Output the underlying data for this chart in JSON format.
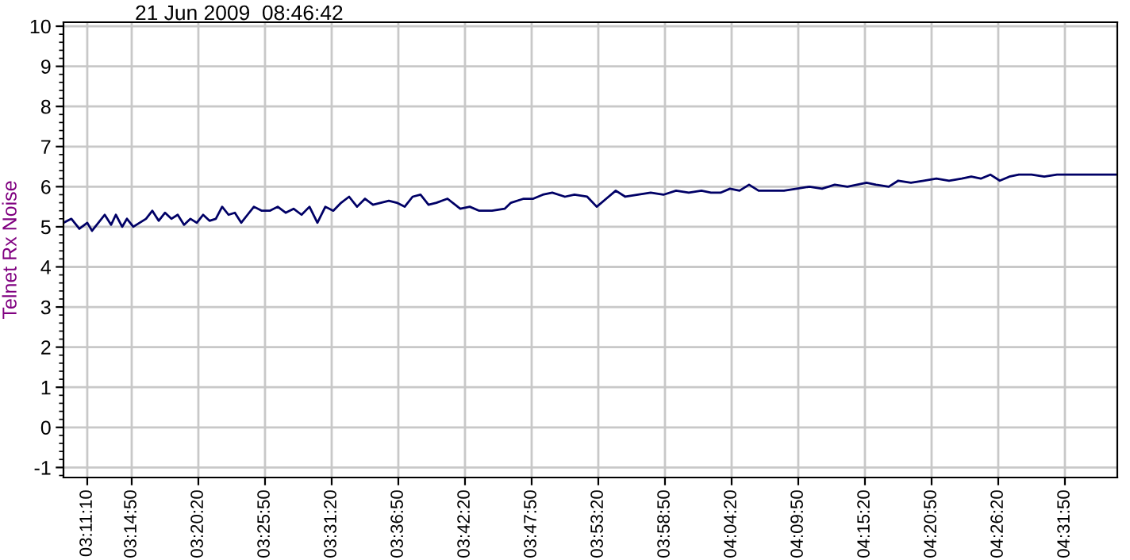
{
  "chart_data": {
    "type": "line",
    "title": "21 Jun 2009  08:46:42",
    "ylabel": "Telnet Rx Noise",
    "x": [
      3.1534,
      3.1643,
      3.1752,
      3.1861,
      3.1927,
      3.2014,
      3.2101,
      3.2189,
      3.2254,
      3.2341,
      3.2407,
      3.2494,
      3.2581,
      3.2669,
      3.2756,
      3.2843,
      3.2931,
      3.3018,
      3.3105,
      3.3192,
      3.328,
      3.3367,
      3.3454,
      3.3542,
      3.3629,
      3.3716,
      3.3804,
      3.3891,
      3.3978,
      3.4065,
      3.4153,
      3.4262,
      3.4371,
      3.448,
      3.4589,
      3.4698,
      3.4808,
      3.4917,
      3.5026,
      3.5135,
      3.5244,
      3.5353,
      3.5462,
      3.5571,
      3.5681,
      3.579,
      3.5899,
      3.6008,
      3.6117,
      3.6226,
      3.6335,
      3.6444,
      3.6554,
      3.6663,
      3.6815,
      3.699,
      3.7121,
      3.7252,
      3.7427,
      3.7601,
      3.7688,
      3.7863,
      3.7994,
      3.8125,
      3.8256,
      3.843,
      3.8561,
      3.8736,
      3.8867,
      3.8998,
      3.9129,
      3.926,
      3.9434,
      3.9609,
      3.9784,
      3.9958,
      4.0133,
      4.0307,
      4.0438,
      4.0569,
      4.07,
      4.0831,
      4.0962,
      4.1093,
      4.1268,
      4.1442,
      4.1617,
      4.1792,
      4.1966,
      4.2141,
      4.2315,
      4.2446,
      4.2577,
      4.2708,
      4.2883,
      4.3014,
      4.3188,
      4.3363,
      4.3538,
      4.3712,
      4.3887,
      4.4018,
      4.4149,
      4.428,
      4.441,
      4.4541,
      4.4672,
      4.4847,
      4.5022,
      4.5196,
      4.5502,
      4.6026
    ],
    "series": [
      {
        "color": "#000066",
        "values": [
          5.1,
          5.2,
          4.95,
          5.1,
          4.9,
          5.1,
          5.3,
          5.05,
          5.3,
          5.0,
          5.2,
          5.0,
          5.1,
          5.2,
          5.4,
          5.15,
          5.35,
          5.2,
          5.3,
          5.05,
          5.2,
          5.1,
          5.3,
          5.15,
          5.2,
          5.5,
          5.3,
          5.35,
          5.1,
          5.3,
          5.5,
          5.4,
          5.4,
          5.5,
          5.35,
          5.45,
          5.3,
          5.5,
          5.1,
          5.5,
          5.4,
          5.6,
          5.75,
          5.5,
          5.7,
          5.55,
          5.6,
          5.65,
          5.6,
          5.5,
          5.75,
          5.8,
          5.55,
          5.6,
          5.7,
          5.45,
          5.5,
          5.4,
          5.4,
          5.45,
          5.6,
          5.7,
          5.7,
          5.8,
          5.85,
          5.75,
          5.8,
          5.75,
          5.5,
          5.7,
          5.9,
          5.75,
          5.8,
          5.85,
          5.8,
          5.9,
          5.85,
          5.9,
          5.85,
          5.85,
          5.95,
          5.9,
          6.05,
          5.9,
          5.9,
          5.9,
          5.95,
          6.0,
          5.95,
          6.05,
          6.0,
          6.05,
          6.1,
          6.05,
          6.0,
          6.15,
          6.1,
          6.15,
          6.2,
          6.15,
          6.2,
          6.25,
          6.2,
          6.3,
          6.15,
          6.25,
          6.3,
          6.3,
          6.25,
          6.3,
          6.3,
          6.3
        ]
      }
    ],
    "xlim": [
      3.1534,
      4.6026
    ],
    "ylim": [
      -1.25,
      10.1
    ],
    "xticks": [
      {
        "value": 3.18611,
        "label": "03:11:10"
      },
      {
        "value": 3.24722,
        "label": "03:14:50"
      },
      {
        "value": 3.33889,
        "label": "03:20:20"
      },
      {
        "value": 3.43056,
        "label": "03:25:50"
      },
      {
        "value": 3.52222,
        "label": "03:31:20"
      },
      {
        "value": 3.61389,
        "label": "03:36:50"
      },
      {
        "value": 3.70556,
        "label": "03:42:20"
      },
      {
        "value": 3.79722,
        "label": "03:47:50"
      },
      {
        "value": 3.88889,
        "label": "03:53:20"
      },
      {
        "value": 3.98056,
        "label": "03:58:50"
      },
      {
        "value": 4.07222,
        "label": "04:04:20"
      },
      {
        "value": 4.16389,
        "label": "04:09:50"
      },
      {
        "value": 4.25556,
        "label": "04:15:20"
      },
      {
        "value": 4.34722,
        "label": "04:20:50"
      },
      {
        "value": 4.43889,
        "label": "04:26:20"
      },
      {
        "value": 4.53056,
        "label": "04:31:50"
      }
    ],
    "yticks": [
      -1,
      0,
      1,
      2,
      3,
      4,
      5,
      6,
      7,
      8,
      9,
      10
    ],
    "grid": true,
    "marker": "none",
    "line_style": "solid"
  }
}
